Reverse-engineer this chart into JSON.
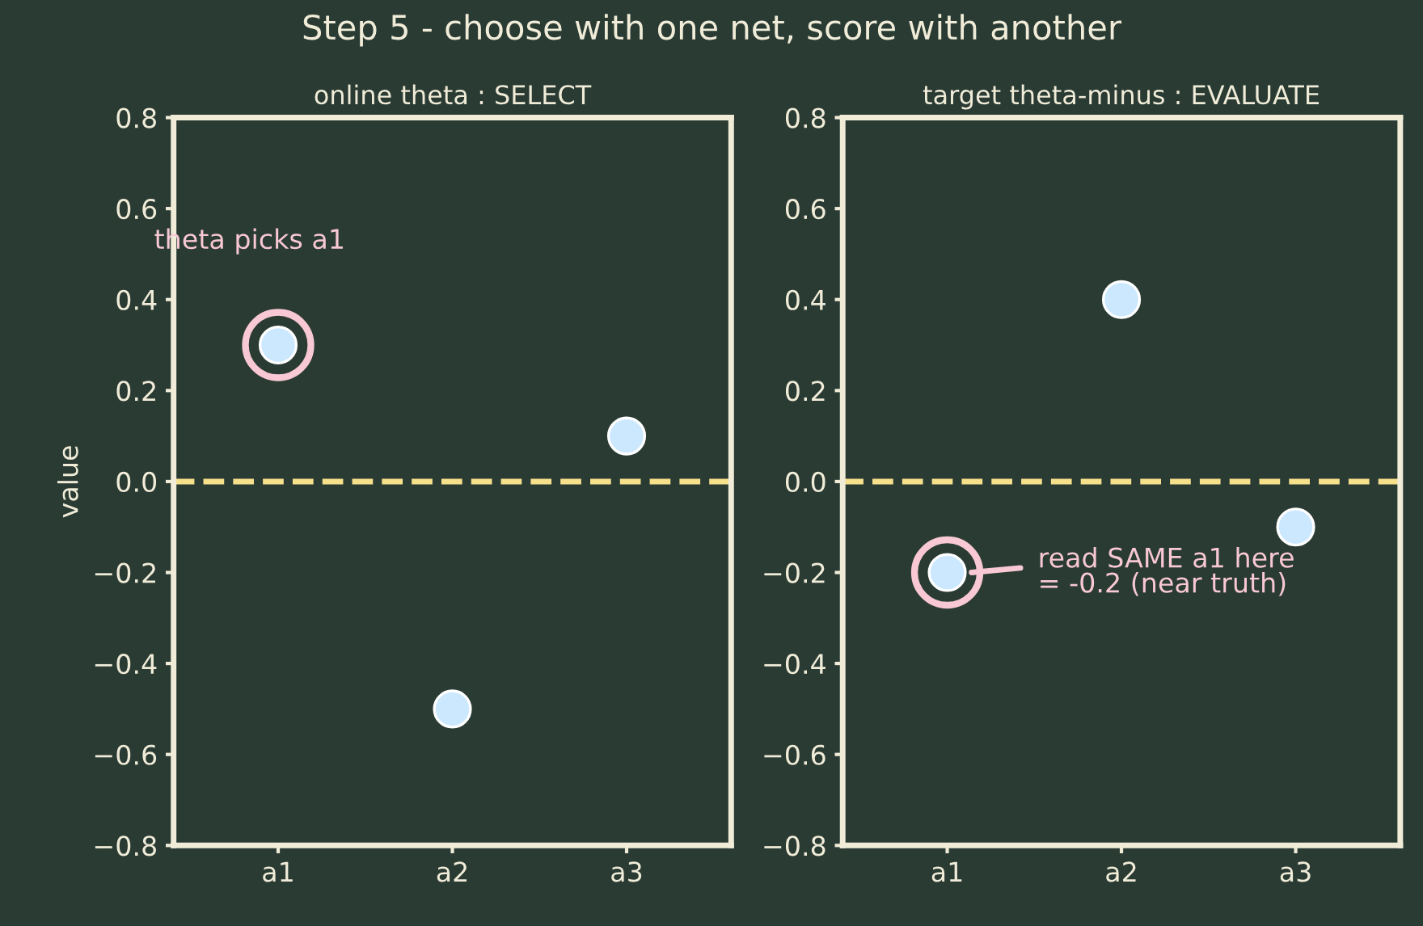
{
  "chart_data": [
    {
      "type": "scatter",
      "title": "online theta : SELECT",
      "ylabel": "value",
      "categories": [
        "a1",
        "a2",
        "a3"
      ],
      "values": [
        0.3,
        -0.5,
        0.1
      ],
      "color": "#cce8ff",
      "marker": "circle",
      "ylim": [
        -0.8,
        0.8
      ],
      "yticks": [
        {
          "value": -0.8,
          "label": "−0.8"
        },
        {
          "value": -0.6,
          "label": "−0.6"
        },
        {
          "value": -0.4,
          "label": "−0.4"
        },
        {
          "value": -0.2,
          "label": "−0.2"
        },
        {
          "value": 0,
          "label": "0.0"
        },
        0.2,
        0.4,
        0.6,
        0.8
      ],
      "ref_lines": [
        {
          "axis": "y",
          "value": 0,
          "color": "#f7e08c",
          "line_style": "dashed"
        }
      ],
      "annotations": [
        "Step 5 - choose with one net, score with another",
        "theta picks a1"
      ],
      "grid": false,
      "legend": false
    },
    {
      "type": "scatter",
      "title": "target theta-minus : EVALUATE",
      "categories": [
        "a1",
        "a2",
        "a3"
      ],
      "values": [
        -0.2,
        0.4,
        -0.1
      ],
      "color": "#cce8ff",
      "marker": "circle",
      "ylim": [
        -0.8,
        0.8
      ],
      "yticks": [
        {
          "value": -0.8,
          "label": "−0.8"
        },
        {
          "value": -0.6,
          "label": "−0.6"
        },
        {
          "value": -0.4,
          "label": "−0.4"
        },
        {
          "value": -0.2,
          "label": "−0.2"
        },
        {
          "value": 0,
          "label": "0.0"
        },
        0.2,
        0.4,
        0.6,
        0.8
      ],
      "ref_lines": [
        {
          "axis": "y",
          "value": 0,
          "color": "#f7e08c",
          "line_style": "dashed"
        }
      ],
      "annotations": [
        "read SAME a1 here\n= -0.2 (near truth)"
      ],
      "grid": false,
      "legend": false
    }
  ]
}
